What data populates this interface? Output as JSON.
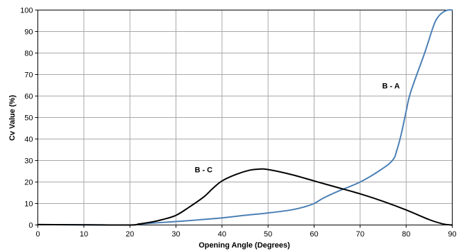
{
  "chart_data": {
    "type": "line",
    "xlabel": "Opening Angle (Degrees)",
    "ylabel": "Cv Value (%)",
    "xlim": [
      0,
      90
    ],
    "ylim": [
      0,
      100
    ],
    "grid": true,
    "x_ticks": [
      "0",
      "10",
      "20",
      "30",
      "40",
      "50",
      "60",
      "70",
      "80",
      "90"
    ],
    "y_ticks": [
      "0",
      "10",
      "20",
      "30",
      "40",
      "50",
      "60",
      "70",
      "80",
      "90",
      "100"
    ],
    "series": [
      {
        "name": "B - A",
        "color": "#4a7fb5",
        "points": [
          [
            0,
            0.2
          ],
          [
            10,
            0.1
          ],
          [
            20,
            0
          ],
          [
            22,
            0.4
          ],
          [
            25,
            0.9
          ],
          [
            30,
            1.6
          ],
          [
            35,
            2.4
          ],
          [
            40,
            3.3
          ],
          [
            45,
            4.5
          ],
          [
            50,
            5.6
          ],
          [
            55,
            7.0
          ],
          [
            58,
            8.5
          ],
          [
            60,
            10
          ],
          [
            62,
            12.5
          ],
          [
            65,
            15.5
          ],
          [
            70,
            20
          ],
          [
            74,
            25
          ],
          [
            77,
            30
          ],
          [
            78,
            35
          ],
          [
            79,
            43
          ],
          [
            80,
            53
          ],
          [
            81,
            62
          ],
          [
            84,
            80
          ],
          [
            86,
            93
          ],
          [
            87,
            97
          ],
          [
            88,
            99
          ],
          [
            89,
            100
          ],
          [
            90,
            100
          ]
        ]
      },
      {
        "name": "B - C",
        "color": "#000000",
        "points": [
          [
            0,
            0.2
          ],
          [
            10,
            0.1
          ],
          [
            20,
            0
          ],
          [
            22,
            0.5
          ],
          [
            25,
            1.5
          ],
          [
            27,
            2.5
          ],
          [
            30,
            4.5
          ],
          [
            33,
            8.5
          ],
          [
            36,
            13
          ],
          [
            38,
            17
          ],
          [
            40,
            20.5
          ],
          [
            43,
            23.5
          ],
          [
            46,
            25.5
          ],
          [
            48,
            26
          ],
          [
            50,
            25.8
          ],
          [
            55,
            23.5
          ],
          [
            60,
            20.5
          ],
          [
            65,
            17.5
          ],
          [
            70,
            14.5
          ],
          [
            75,
            11
          ],
          [
            80,
            7
          ],
          [
            85,
            2.5
          ],
          [
            88,
            0.5
          ],
          [
            90,
            0
          ]
        ]
      }
    ],
    "annotations": [
      {
        "text": "B - A",
        "x": 76.7,
        "y": 63.5
      },
      {
        "text": "B - C",
        "x": 36,
        "y": 24.5
      }
    ]
  }
}
